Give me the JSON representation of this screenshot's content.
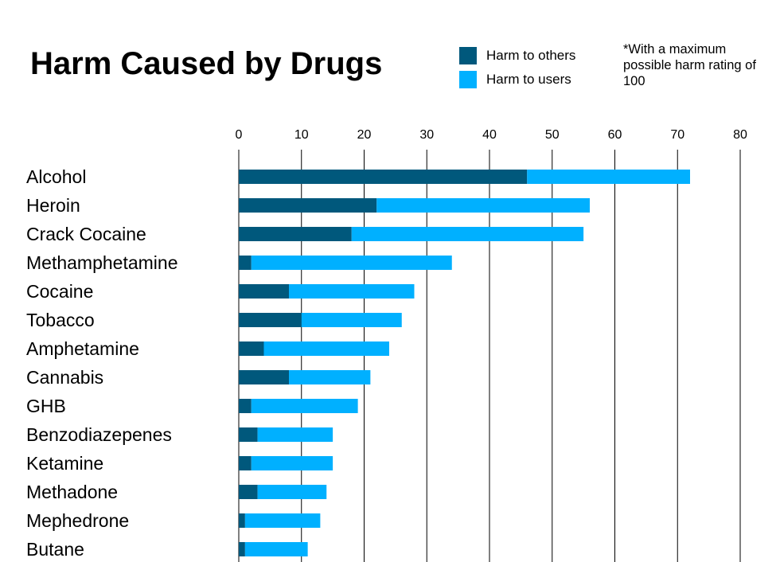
{
  "header": {
    "title": "Harm Caused by Drugs",
    "note": "*With a maximum possible harm rating of 100"
  },
  "legend": {
    "items": [
      {
        "label": "Harm to others",
        "color": "#00587c"
      },
      {
        "label": "Harm to users",
        "color": "#00b0ff"
      }
    ]
  },
  "chart_data": {
    "type": "bar",
    "orientation": "horizontal",
    "stacked": true,
    "title": "Harm Caused by Drugs",
    "xlabel": "",
    "ylabel": "",
    "xlim": [
      0,
      80
    ],
    "xticks": [
      0,
      10,
      20,
      30,
      40,
      50,
      60,
      70,
      80
    ],
    "grid": true,
    "legend_position": "top-right",
    "categories": [
      "Alcohol",
      "Heroin",
      "Crack Cocaine",
      "Methamphetamine",
      "Cocaine",
      "Tobacco",
      "Amphetamine",
      "Cannabis",
      "GHB",
      "Benzodiazepenes",
      "Ketamine",
      "Methadone",
      "Mephedrone",
      "Butane"
    ],
    "series": [
      {
        "name": "Harm to others",
        "color": "#00587c",
        "values": [
          46,
          22,
          18,
          2,
          8,
          10,
          4,
          8,
          2,
          3,
          2,
          3,
          1,
          1
        ]
      },
      {
        "name": "Harm to users",
        "color": "#00b0ff",
        "values": [
          26,
          34,
          37,
          32,
          20,
          16,
          20,
          13,
          17,
          12,
          13,
          11,
          12,
          10
        ]
      }
    ]
  }
}
